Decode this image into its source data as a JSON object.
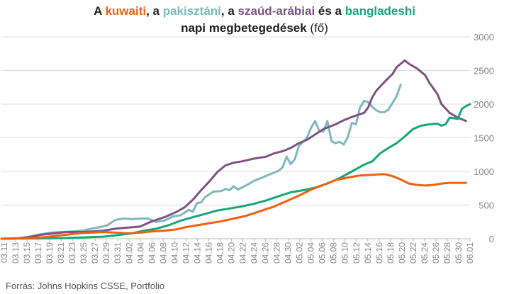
{
  "title": {
    "line1": {
      "p1": "A ",
      "kuwait": "kuwaiti",
      "p2": ", a ",
      "pakistan": "pakisztáni",
      "p3": ", a ",
      "saudi": "szaúd-arábiai",
      "p4": " és a ",
      "bangladesh": "bangladeshi"
    },
    "line2": {
      "bold": "napi megbetegedések",
      "unit": " (fő)"
    }
  },
  "source": "Forrás: Johns Hopkins CSSE, Portfolio",
  "colors": {
    "kuwait": "#f0600f",
    "pakistan": "#7db9bd",
    "saudi": "#7f5383",
    "bangladesh": "#18a57a",
    "grid": "#dddddd",
    "axis": "#bbbbbb",
    "tick": "#888888"
  },
  "chart_data": {
    "type": "line",
    "grid": true,
    "ylim": [
      0,
      3000
    ],
    "yticks": [
      0,
      500,
      1000,
      1500,
      2000,
      2500,
      3000
    ],
    "xticks": [
      "03.11",
      "03.13",
      "03.15",
      "03.17",
      "03.19",
      "03.21",
      "03.23",
      "03.25",
      "03.27",
      "03.29",
      "03.31",
      "04.02",
      "04.04",
      "04.06",
      "04.08",
      "04.10",
      "04.12",
      "04.14",
      "04.16",
      "04.18",
      "04.20",
      "04.22",
      "04.24",
      "04.26",
      "04.28",
      "04.30",
      "05.02",
      "05.04",
      "05.06",
      "05.08",
      "05.10",
      "05.12",
      "05.14",
      "05.16",
      "05.18",
      "05.20",
      "05.22",
      "05.24",
      "05.26",
      "05.28",
      "05.30",
      "06.01"
    ],
    "series": [
      {
        "key": "pakistan",
        "points": [
          [
            0,
            0
          ],
          [
            3,
            5
          ],
          [
            5,
            15
          ],
          [
            7,
            30
          ],
          [
            9,
            60
          ],
          [
            12,
            90
          ],
          [
            15,
            100
          ],
          [
            18,
            110
          ],
          [
            20,
            120
          ],
          [
            22,
            150
          ],
          [
            24,
            170
          ],
          [
            26,
            200
          ],
          [
            28,
            280
          ],
          [
            30,
            300
          ],
          [
            32,
            290
          ],
          [
            34,
            300
          ],
          [
            36,
            300
          ],
          [
            38,
            250
          ],
          [
            40,
            270
          ],
          [
            42,
            330
          ],
          [
            44,
            350
          ],
          [
            46,
            430
          ],
          [
            47,
            400
          ],
          [
            48,
            530
          ],
          [
            49,
            540
          ],
          [
            50,
            620
          ],
          [
            52,
            700
          ],
          [
            54,
            710
          ],
          [
            55,
            740
          ],
          [
            56,
            720
          ],
          [
            57,
            780
          ],
          [
            58,
            730
          ],
          [
            60,
            790
          ],
          [
            62,
            860
          ],
          [
            64,
            910
          ],
          [
            66,
            960
          ],
          [
            68,
            1010
          ],
          [
            69,
            1060
          ],
          [
            70,
            1220
          ],
          [
            71,
            1110
          ],
          [
            72,
            1180
          ],
          [
            73,
            1380
          ],
          [
            75,
            1500
          ],
          [
            76,
            1650
          ],
          [
            77,
            1750
          ],
          [
            78,
            1600
          ],
          [
            79,
            1590
          ],
          [
            80,
            1750
          ],
          [
            81,
            1450
          ],
          [
            82,
            1420
          ],
          [
            83,
            1440
          ],
          [
            84,
            1400
          ],
          [
            85,
            1510
          ],
          [
            86,
            1720
          ],
          [
            87,
            1700
          ],
          [
            88,
            1950
          ],
          [
            89,
            2050
          ],
          [
            90,
            2030
          ],
          [
            91,
            1960
          ],
          [
            92,
            1910
          ],
          [
            93,
            1880
          ],
          [
            94,
            1880
          ],
          [
            95,
            1920
          ],
          [
            96,
            2020
          ],
          [
            97,
            2120
          ],
          [
            98,
            2290
          ]
        ]
      },
      {
        "key": "saudi",
        "points": [
          [
            0,
            0
          ],
          [
            4,
            5
          ],
          [
            6,
            20
          ],
          [
            8,
            40
          ],
          [
            10,
            60
          ],
          [
            13,
            80
          ],
          [
            16,
            100
          ],
          [
            20,
            100
          ],
          [
            25,
            120
          ],
          [
            28,
            150
          ],
          [
            30,
            160
          ],
          [
            34,
            180
          ],
          [
            37,
            260
          ],
          [
            40,
            320
          ],
          [
            43,
            400
          ],
          [
            45,
            470
          ],
          [
            47,
            580
          ],
          [
            49,
            720
          ],
          [
            51,
            850
          ],
          [
            53,
            990
          ],
          [
            55,
            1090
          ],
          [
            57,
            1130
          ],
          [
            59,
            1150
          ],
          [
            62,
            1190
          ],
          [
            65,
            1220
          ],
          [
            67,
            1270
          ],
          [
            69,
            1300
          ],
          [
            71,
            1350
          ],
          [
            73,
            1420
          ],
          [
            75,
            1470
          ],
          [
            77,
            1550
          ],
          [
            79,
            1630
          ],
          [
            82,
            1700
          ],
          [
            84,
            1760
          ],
          [
            86,
            1810
          ],
          [
            89,
            1870
          ],
          [
            90,
            1950
          ],
          [
            91,
            2100
          ],
          [
            92,
            2200
          ],
          [
            94,
            2330
          ],
          [
            96,
            2450
          ],
          [
            97,
            2550
          ],
          [
            98,
            2600
          ],
          [
            99,
            2650
          ],
          [
            100,
            2600
          ],
          [
            102,
            2530
          ],
          [
            104,
            2430
          ],
          [
            105,
            2320
          ],
          [
            107,
            2150
          ],
          [
            108,
            2000
          ],
          [
            110,
            1870
          ],
          [
            112,
            1800
          ],
          [
            114,
            1750
          ]
        ]
      },
      {
        "key": "bangladesh",
        "points": [
          [
            0,
            0
          ],
          [
            10,
            5
          ],
          [
            15,
            10
          ],
          [
            20,
            20
          ],
          [
            25,
            30
          ],
          [
            28,
            50
          ],
          [
            32,
            80
          ],
          [
            35,
            120
          ],
          [
            38,
            150
          ],
          [
            41,
            200
          ],
          [
            44,
            270
          ],
          [
            47,
            320
          ],
          [
            50,
            370
          ],
          [
            53,
            420
          ],
          [
            56,
            450
          ],
          [
            59,
            480
          ],
          [
            62,
            520
          ],
          [
            65,
            570
          ],
          [
            68,
            630
          ],
          [
            71,
            690
          ],
          [
            74,
            720
          ],
          [
            77,
            760
          ],
          [
            80,
            820
          ],
          [
            83,
            900
          ],
          [
            86,
            1000
          ],
          [
            89,
            1100
          ],
          [
            91,
            1150
          ],
          [
            93,
            1270
          ],
          [
            95,
            1350
          ],
          [
            97,
            1420
          ],
          [
            99,
            1520
          ],
          [
            101,
            1630
          ],
          [
            103,
            1680
          ],
          [
            105,
            1700
          ],
          [
            107,
            1710
          ],
          [
            108,
            1680
          ],
          [
            109,
            1700
          ],
          [
            110,
            1800
          ],
          [
            111,
            1790
          ],
          [
            112,
            1780
          ],
          [
            113,
            1930
          ],
          [
            114,
            1970
          ],
          [
            115,
            2000
          ]
        ]
      },
      {
        "key": "kuwait",
        "points": [
          [
            0,
            0
          ],
          [
            4,
            5
          ],
          [
            6,
            10
          ],
          [
            8,
            15
          ],
          [
            10,
            20
          ],
          [
            13,
            40
          ],
          [
            16,
            60
          ],
          [
            19,
            80
          ],
          [
            22,
            90
          ],
          [
            25,
            100
          ],
          [
            28,
            90
          ],
          [
            31,
            80
          ],
          [
            34,
            90
          ],
          [
            37,
            110
          ],
          [
            40,
            120
          ],
          [
            43,
            140
          ],
          [
            45,
            170
          ],
          [
            48,
            200
          ],
          [
            51,
            230
          ],
          [
            54,
            260
          ],
          [
            57,
            300
          ],
          [
            60,
            340
          ],
          [
            62,
            380
          ],
          [
            64,
            420
          ],
          [
            67,
            480
          ],
          [
            70,
            560
          ],
          [
            73,
            640
          ],
          [
            76,
            730
          ],
          [
            79,
            800
          ],
          [
            82,
            870
          ],
          [
            85,
            910
          ],
          [
            88,
            940
          ],
          [
            91,
            950
          ],
          [
            94,
            960
          ],
          [
            96,
            930
          ],
          [
            98,
            880
          ],
          [
            100,
            820
          ],
          [
            102,
            800
          ],
          [
            104,
            790
          ],
          [
            106,
            800
          ],
          [
            108,
            820
          ],
          [
            110,
            830
          ],
          [
            114,
            830
          ]
        ]
      }
    ],
    "x_count": 115
  }
}
